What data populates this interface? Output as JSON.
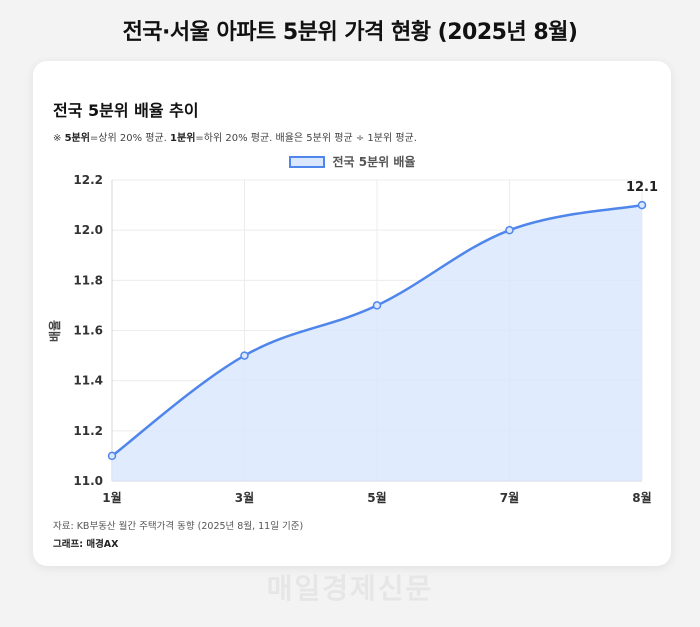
{
  "page": {
    "title": "전국·서울 아파트 5분위 가격 현황 (2025년 8월)",
    "watermark": "매일경제신문"
  },
  "card": {
    "title": "전국 5분위 배율 추이",
    "note_prefix": "※ ",
    "note_q5": "5분위",
    "note_q5_desc": "=상위 20% 평균. ",
    "note_q1": "1분위",
    "note_q1_desc": "=하위 20% 평균. 배율은 5분위 평균 ÷ 1분위 평균.",
    "source": "자료: KB부동산 월간 주택가격 동향 (2025년 8월, 11일 기준)",
    "credit": "그래프: 매경AX"
  },
  "chart_data": {
    "type": "line",
    "categories": [
      "1월",
      "3월",
      "5월",
      "7월",
      "8월"
    ],
    "series": [
      {
        "name": "전국 5분위 배율",
        "values": [
          11.1,
          11.5,
          11.7,
          12.0,
          12.1
        ]
      }
    ],
    "ylabel": "배율",
    "ylim": [
      11.0,
      12.2
    ],
    "yticks": [
      11.0,
      11.2,
      11.4,
      11.6,
      11.8,
      12.0,
      12.2
    ],
    "data_labels": [
      {
        "index": 4,
        "text": "12.1"
      }
    ],
    "fill": true,
    "grid": true,
    "legend": "top-center",
    "colors": {
      "line": "#4f86ec",
      "fill": "#dbe7fd"
    }
  }
}
